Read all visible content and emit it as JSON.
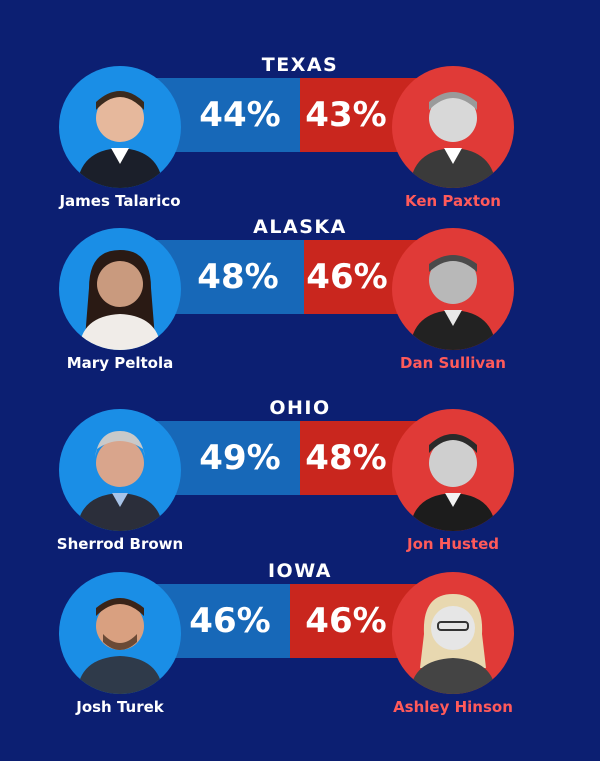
{
  "races": [
    {
      "state": "TEXAS",
      "dem": {
        "name": "James Talarico",
        "pct": "44%",
        "photo": "portrait-photo"
      },
      "rep": {
        "name": "Ken Paxton",
        "pct": "43%",
        "photo": "portrait-photo"
      },
      "dem_share": 44,
      "rep_share": 43
    },
    {
      "state": "ALASKA",
      "dem": {
        "name": "Mary Peltola",
        "pct": "48%",
        "photo": "portrait-photo"
      },
      "rep": {
        "name": "Dan Sullivan",
        "pct": "46%",
        "photo": "portrait-photo"
      },
      "dem_share": 48,
      "rep_share": 46
    },
    {
      "state": "OHIO",
      "dem": {
        "name": "Sherrod Brown",
        "pct": "49%",
        "photo": "portrait-photo"
      },
      "rep": {
        "name": "Jon Husted",
        "pct": "48%",
        "photo": "portrait-photo"
      },
      "dem_share": 49,
      "rep_share": 48
    },
    {
      "state": "IOWA",
      "dem": {
        "name": "Josh Turek",
        "pct": "46%",
        "photo": "portrait-photo"
      },
      "rep": {
        "name": "Ashley Hinson",
        "pct": "46%",
        "photo": "portrait-photo"
      },
      "dem_share": 46,
      "rep_share": 46
    }
  ],
  "colors": {
    "background": "#0c1f72",
    "dem_bar": "#1768b8",
    "rep_bar": "#c9261e",
    "dem_circle": "#1a8ee6",
    "rep_circle": "#e03a37",
    "rep_name": "#ff5a5a"
  }
}
